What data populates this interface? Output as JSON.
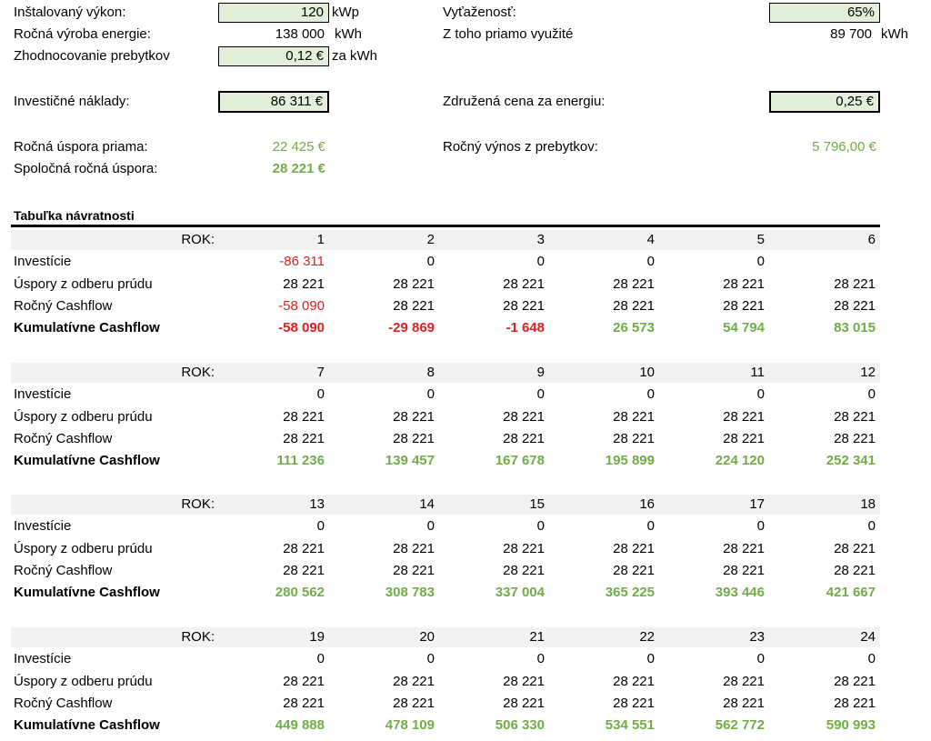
{
  "summary": {
    "installed_power": {
      "label": "Inštalovaný výkon:",
      "value": "120",
      "unit": "kWp"
    },
    "annual_production": {
      "label": "Ročná výroba energie:",
      "value": "138 000",
      "unit": "kWh"
    },
    "surplus_valuation": {
      "label": "Zhodnocovanie prebytkov",
      "value": "0,12 €",
      "unit": "za kWh"
    },
    "investment_costs": {
      "label": "Investičné náklady:",
      "value": "86 311 €"
    },
    "direct_saving": {
      "label": "Ročná úspora priama:",
      "value": "22 425 €"
    },
    "total_saving": {
      "label": "Spoločná ročná úspora:",
      "value": "28 221 €"
    },
    "utilization": {
      "label": "Vyťaženosť:",
      "value": "65%"
    },
    "directly_used": {
      "label": "Z toho priamo využité",
      "value": "89 700",
      "unit": "kWh"
    },
    "combined_price": {
      "label": "Združená cena za energiu:",
      "value": "0,25 €"
    },
    "surplus_revenue": {
      "label": "Ročný výnos z prebytkov:",
      "value": "5 796,00 €"
    }
  },
  "table": {
    "title": "Tabuľka návratnosti",
    "rok_label": "ROK:",
    "row_labels": {
      "investment": "Investície",
      "savings": "Úspory z odberu prúdu",
      "cashflow": "Ročný Cashflow",
      "cumulative": "Kumulatívne Cashflow"
    },
    "blocks": [
      {
        "years": [
          "1",
          "2",
          "3",
          "4",
          "5",
          "6"
        ],
        "investment": [
          "-86 311",
          "0",
          "0",
          "0",
          "0",
          ""
        ],
        "savings": [
          "28 221",
          "28 221",
          "28 221",
          "28 221",
          "28 221",
          "28 221"
        ],
        "cashflow": [
          "-58 090",
          "28 221",
          "28 221",
          "28 221",
          "28 221",
          "28 221"
        ],
        "cumulative": [
          "-58 090",
          "-29 869",
          "-1 648",
          "26 573",
          "54 794",
          "83 015"
        ]
      },
      {
        "years": [
          "7",
          "8",
          "9",
          "10",
          "11",
          "12"
        ],
        "investment": [
          "0",
          "0",
          "0",
          "0",
          "0",
          "0"
        ],
        "savings": [
          "28 221",
          "28 221",
          "28 221",
          "28 221",
          "28 221",
          "28 221"
        ],
        "cashflow": [
          "28 221",
          "28 221",
          "28 221",
          "28 221",
          "28 221",
          "28 221"
        ],
        "cumulative": [
          "111 236",
          "139 457",
          "167 678",
          "195 899",
          "224 120",
          "252 341"
        ]
      },
      {
        "years": [
          "13",
          "14",
          "15",
          "16",
          "17",
          "18"
        ],
        "investment": [
          "0",
          "0",
          "0",
          "0",
          "0",
          "0"
        ],
        "savings": [
          "28 221",
          "28 221",
          "28 221",
          "28 221",
          "28 221",
          "28 221"
        ],
        "cashflow": [
          "28 221",
          "28 221",
          "28 221",
          "28 221",
          "28 221",
          "28 221"
        ],
        "cumulative": [
          "280 562",
          "308 783",
          "337 004",
          "365 225",
          "393 446",
          "421 667"
        ]
      },
      {
        "years": [
          "19",
          "20",
          "21",
          "22",
          "23",
          "24"
        ],
        "investment": [
          "0",
          "0",
          "0",
          "0",
          "0",
          "0"
        ],
        "savings": [
          "28 221",
          "28 221",
          "28 221",
          "28 221",
          "28 221",
          "28 221"
        ],
        "cashflow": [
          "28 221",
          "28 221",
          "28 221",
          "28 221",
          "28 221",
          "28 221"
        ],
        "cumulative": [
          "449 888",
          "478 109",
          "506 330",
          "534 551",
          "562 772",
          "590 993"
        ]
      }
    ]
  },
  "colors": {
    "input_fill": "#e2efda",
    "positive": "#70ad47",
    "negative": "#e02020",
    "band": "#f2f2f2"
  }
}
